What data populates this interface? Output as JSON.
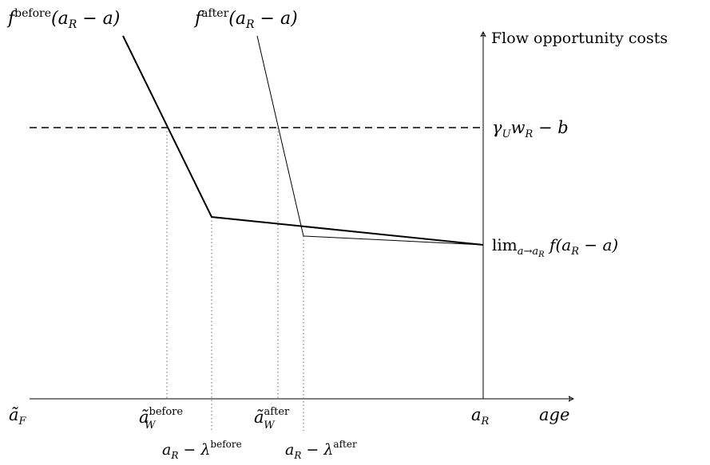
{
  "labels": {
    "f_before": {
      "main": "f",
      "sup": "before",
      "arg": "(a",
      "argsub": "R",
      "argtail": " − a)"
    },
    "f_after": {
      "main": "f",
      "sup": "after",
      "arg": "(a",
      "argsub": "R",
      "argtail": " − a)"
    },
    "y_axis_title": "Flow opportunity costs",
    "x_axis_title": "age",
    "gamma_line": {
      "g": "γ",
      "gsub": "U",
      "w": "w",
      "wsub": "R",
      "tail": " − b"
    },
    "limit": {
      "lim": "lim",
      "limsub": "a→a",
      "limsubsub": "R",
      "tail": " f(a",
      "tailsub": "R",
      "end": " − a)"
    },
    "a_tilde_F": {
      "main": "ã",
      "sub": "F"
    },
    "a_tilde_W_before": {
      "main": "ã",
      "sub": "W",
      "sup": "before"
    },
    "a_tilde_W_after": {
      "main": "ã",
      "sub": "W",
      "sup": "after"
    },
    "a_R": {
      "main": "a",
      "sub": "R"
    },
    "kink_before": {
      "main": "a",
      "sub": "R",
      "mid": " − λ",
      "sup": "before"
    },
    "kink_after": {
      "main": "a",
      "sub": "R",
      "mid": " − λ",
      "sup": "after"
    }
  },
  "colors": {
    "ink": "#000000",
    "guide": "#666666"
  }
}
